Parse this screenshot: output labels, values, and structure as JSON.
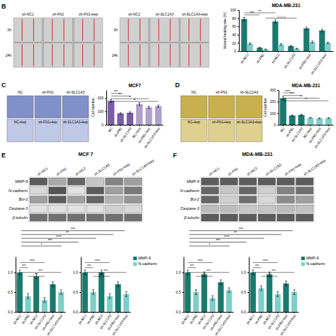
{
  "chart_data": [
    {
      "type": "image_grid",
      "annotations": [
        {
          "text": "B"
        }
      ],
      "categories": [
        "sh-NC1",
        "sh-FN1",
        "sh-FN1+kep"
      ],
      "y_categories": [
        "0h",
        "24h"
      ],
      "color": "#cc0000"
    },
    {
      "type": "image_grid",
      "categories": [
        "sh-NC2",
        "sh-SLC1A3",
        "sh-SLC1A3+kep"
      ],
      "y_categories": [
        "0h",
        "24h"
      ],
      "color": "#cc0000"
    },
    {
      "type": "bar",
      "title": "MDA-MB-231",
      "y_label": "Wound healing rate (%)",
      "categories": [
        "sh-NC1",
        "sh-FN1",
        "sh-NC2",
        "sh-SLC1A3",
        "sh-FN1+kep",
        "sh-SLC1A3+kep"
      ],
      "series": [
        {
          "color": "#1a7a6e",
          "values": [
            78,
            8,
            72,
            12,
            55,
            50
          ],
          "errors": [
            4,
            1,
            4,
            1.5,
            3,
            3
          ]
        },
        {
          "color": "#7ececa",
          "values": [
            18,
            4,
            16,
            6,
            22,
            20
          ],
          "errors": [
            2,
            0.8,
            2,
            1,
            2.5,
            2
          ]
        }
      ],
      "ylim": [
        0,
        100
      ],
      "yticks": [
        0,
        20,
        40,
        60,
        80,
        100
      ],
      "annotations": [
        {
          "text": "***",
          "y": 88,
          "from": 0,
          "to": 1,
          "series": 0
        },
        {
          "text": "**",
          "y": 93,
          "from": 0,
          "to": 2,
          "series": 0
        },
        {
          "text": "△△△",
          "y": 80,
          "from": 1,
          "to": 3,
          "series": 1
        }
      ]
    },
    {
      "type": "image_grid",
      "annotations": [
        {
          "text": "C"
        }
      ],
      "categories": [
        "NC",
        "sh-FN1",
        "sh-SLC1A3"
      ],
      "lower_categories": [
        "NC+kep",
        "sh-FN1+kep",
        "sh-SLC1A3+kep"
      ],
      "colors": [
        "#8090c8",
        "#c0c8e8"
      ]
    },
    {
      "type": "bar",
      "title": "MCF7",
      "y_label": "Cell number",
      "categories": [
        "NC",
        "sh-FN1",
        "sh-SLC1A3",
        "NC+kep",
        "sh-FN1+kep",
        "sh-SLC1A3+kep"
      ],
      "values": [
        180,
        85,
        90,
        155,
        130,
        140
      ],
      "errors": [
        12,
        6,
        7,
        10,
        9,
        8
      ],
      "colors": [
        "#7b5ea7",
        "#7b5ea7",
        "#7b5ea7",
        "#b0a0cc",
        "#b0a0cc",
        "#b0a0cc"
      ],
      "ylim": [
        0,
        260
      ],
      "yticks": [
        0,
        100,
        200
      ],
      "annotations": [
        {
          "text": "***",
          "y": 235,
          "from": 0,
          "to": 1
        },
        {
          "text": "***",
          "y": 215,
          "from": 0,
          "to": 2
        },
        {
          "text": "**",
          "y": 195,
          "from": 0,
          "to": 4
        },
        {
          "text": "**",
          "y": 175,
          "from": 0,
          "to": 5
        }
      ]
    },
    {
      "type": "image_grid",
      "annotations": [
        {
          "text": "D"
        }
      ],
      "categories": [
        "NC",
        "sh-FN1",
        "sh-SLC1A3"
      ],
      "lower_categories": [
        "NC+kep",
        "sh-FN1+kep",
        "sh-SLC1A3+kep"
      ],
      "colors": [
        "#c8b050",
        "#dfd090"
      ]
    },
    {
      "type": "bar",
      "title": "MDA-MB-231",
      "y_label": "Cell number",
      "categories": [
        "NC",
        "sh-FN1",
        "sh-SLC1A3",
        "NC+kep",
        "sh-FN1+kep",
        "sh-SLC1A3+kep"
      ],
      "values": [
        230,
        80,
        85,
        60,
        55,
        58
      ],
      "errors": [
        15,
        5,
        6,
        4,
        4,
        4
      ],
      "colors": [
        "#1a7a6e",
        "#1a7a6e",
        "#1a7a6e",
        "#7ececa",
        "#7ececa",
        "#7ececa"
      ],
      "ylim": [
        0,
        300
      ],
      "yticks": [
        0,
        100,
        200,
        300
      ],
      "annotations": [
        {
          "text": "****",
          "y": 275,
          "from": 0,
          "to": 1
        },
        {
          "text": "****",
          "y": 253,
          "from": 0,
          "to": 2
        },
        {
          "text": "**",
          "y": 230,
          "from": 0,
          "to": 4
        },
        {
          "text": "**",
          "y": 207,
          "from": 0,
          "to": 5
        }
      ]
    },
    {
      "type": "heatmap",
      "title": "MCF 7",
      "annotations": [
        {
          "text": "E"
        }
      ],
      "categories": [
        "sh-NC1",
        "sh-FN1",
        "sh-NC2",
        "sh-SLC1A3",
        "sh-FN1+kep",
        "sh-SLC1A3+kep"
      ],
      "y_categories": [
        "MMP-9",
        "N-cadherin",
        "Bcl-2",
        "Caspase-3",
        "β-tubulin"
      ],
      "values": [
        [
          0.85,
          0.45,
          0.8,
          0.3,
          0.65,
          0.5
        ],
        [
          0.2,
          0.9,
          0.15,
          0.85,
          0.5,
          0.7
        ],
        [
          0.5,
          0.85,
          0.5,
          0.8,
          0.4,
          0.55
        ],
        [
          0.15,
          0.15,
          0.15,
          0.15,
          0.25,
          0.2
        ],
        [
          0.75,
          0.75,
          0.75,
          0.75,
          0.75,
          0.75
        ]
      ]
    },
    {
      "type": "heatmap",
      "title": "MDA-MB-231",
      "annotations": [
        {
          "text": "F"
        }
      ],
      "categories": [
        "sh-NC1",
        "sh-FN1",
        "sh-NC2",
        "sh-SLC1A3",
        "sh-FN1+kep",
        "sh-SLC1A3+kep"
      ],
      "y_categories": [
        "MMP-9",
        "N-cadherin",
        "Bcl-2",
        "Caspase-3",
        "β-tubulin"
      ],
      "values": [
        [
          0.85,
          0.85,
          0.85,
          0.85,
          0.85,
          0.85
        ],
        [
          0.8,
          0.3,
          0.8,
          0.25,
          0.65,
          0.75
        ],
        [
          0.8,
          0.25,
          0.75,
          0.2,
          0.6,
          0.5
        ],
        [
          0.35,
          0.35,
          0.3,
          0.3,
          0.35,
          0.32
        ],
        [
          0.85,
          0.85,
          0.85,
          0.85,
          0.85,
          0.85
        ]
      ]
    },
    {
      "type": "brackets",
      "annotations": [
        {
          "text": "***"
        },
        {
          "text": "**"
        },
        {
          "text": "****"
        },
        {
          "text": "***"
        },
        {
          "text": "*"
        }
      ]
    },
    {
      "type": "bar",
      "categories": [
        "sh-NC1",
        "sh-FN1",
        "sh-NC2",
        "sh-SLC1A3",
        "sh-FN1+kep",
        "sh-SLC1A3+kep"
      ],
      "values": [
        1.0,
        0.4,
        0.9,
        0.3,
        0.7,
        0.5
      ],
      "errors": [
        0.06,
        0.06,
        0.06,
        0.06,
        0.06,
        0.06
      ],
      "colors": [
        "#1a7a6e",
        "#7ececa",
        "#1a7a6e",
        "#7ececa",
        "#1a7a6e",
        "#7ececa"
      ],
      "ylim": [
        0,
        1.4
      ],
      "yticks": [
        {
          "value": 0,
          "label": "0.0"
        },
        0.5,
        {
          "value": 1,
          "label": "1.0"
        }
      ],
      "annotations": [
        {
          "text": "****",
          "y": 1.25,
          "from": 0,
          "to": 3
        },
        {
          "text": "***",
          "y": 1.12,
          "from": 0,
          "to": 1
        },
        {
          "text": "***",
          "y": 1.0,
          "from": 0,
          "to": 5
        },
        {
          "text": "**",
          "y": 0.9,
          "from": 1,
          "to": 3
        }
      ]
    },
    {
      "type": "bar",
      "categories": [
        "sh-NC1",
        "sh-FN1",
        "sh-NC2",
        "sh-SLC1A3",
        "sh-FN1+kep",
        "sh-SLC1A3+kep"
      ],
      "values": [
        1.0,
        0.5,
        1.0,
        0.4,
        0.7,
        0.45
      ],
      "errors": [
        0.06,
        0.06,
        0.06,
        0.06,
        0.06,
        0.06
      ],
      "colors": [
        "#1a7a6e",
        "#7ececa",
        "#1a7a6e",
        "#7ececa",
        "#1a7a6e",
        "#7ececa"
      ],
      "ylim": [
        0,
        1.4
      ],
      "yticks": [
        {
          "value": 0,
          "label": "0.0"
        },
        0.5,
        {
          "value": 1,
          "label": "1.0"
        }
      ],
      "annotations": [
        {
          "text": "****",
          "y": 1.25,
          "from": 0,
          "to": 3
        },
        {
          "text": "***",
          "y": 1.12,
          "from": 0,
          "to": 1
        },
        {
          "text": "***",
          "y": 1.0,
          "from": 0,
          "to": 5
        },
        {
          "text": "**",
          "y": 0.9,
          "from": 1,
          "to": 3
        }
      ],
      "legend": "right",
      "legend_items": [
        {
          "name": "MMP-9",
          "color": "#1a7a6e"
        },
        {
          "name": "N-cadherin",
          "color": "#7ececa"
        }
      ]
    },
    {
      "type": "brackets",
      "annotations": [
        {
          "text": "***"
        },
        {
          "text": "**"
        },
        {
          "text": "****"
        },
        {
          "text": "***"
        },
        {
          "text": "*"
        }
      ]
    },
    {
      "type": "bar",
      "categories": [
        "sh-NC1",
        "sh-FN1",
        "sh-NC2",
        "sh-SLC1A3",
        "sh-FN1+kep",
        "sh-SLC1A3+kep"
      ],
      "values": [
        1.0,
        0.5,
        0.95,
        0.35,
        0.75,
        0.55
      ],
      "errors": [
        0.06,
        0.06,
        0.06,
        0.06,
        0.06,
        0.06
      ],
      "colors": [
        "#1a7a6e",
        "#7ececa",
        "#1a7a6e",
        "#7ececa",
        "#1a7a6e",
        "#7ececa"
      ],
      "ylim": [
        0,
        1.4
      ],
      "yticks": [
        {
          "value": 0,
          "label": "0.0"
        },
        0.5,
        {
          "value": 1,
          "label": "1.0"
        }
      ],
      "annotations": [
        {
          "text": "****",
          "y": 1.25,
          "from": 0,
          "to": 3
        },
        {
          "text": "***",
          "y": 1.12,
          "from": 0,
          "to": 1
        },
        {
          "text": "***",
          "y": 1.0,
          "from": 0,
          "to": 5
        },
        {
          "text": "**",
          "y": 0.9,
          "from": 1,
          "to": 3
        }
      ]
    },
    {
      "type": "bar",
      "categories": [
        "sh-NC1",
        "sh-FN1",
        "sh-NC2",
        "sh-SLC1A3",
        "sh-FN1+kep",
        "sh-SLC1A3+kep"
      ],
      "values": [
        1.0,
        0.6,
        0.95,
        0.45,
        0.72,
        0.5
      ],
      "errors": [
        0.06,
        0.06,
        0.06,
        0.06,
        0.06,
        0.06
      ],
      "colors": [
        "#1a7a6e",
        "#7ececa",
        "#1a7a6e",
        "#7ececa",
        "#1a7a6e",
        "#7ececa"
      ],
      "ylim": [
        0,
        1.4
      ],
      "yticks": [
        {
          "value": 0,
          "label": "0.0"
        },
        0.5,
        {
          "value": 1,
          "label": "1.0"
        }
      ],
      "annotations": [
        {
          "text": "****",
          "y": 1.25,
          "from": 0,
          "to": 3
        },
        {
          "text": "***",
          "y": 1.12,
          "from": 0,
          "to": 1
        },
        {
          "text": "***",
          "y": 1.0,
          "from": 0,
          "to": 5
        },
        {
          "text": "**",
          "y": 0.9,
          "from": 1,
          "to": 3
        }
      ],
      "legend": "right",
      "legend_items": [
        {
          "name": "MMP-9",
          "color": "#1a7a6e"
        },
        {
          "name": "N-cadherin",
          "color": "#7ececa"
        }
      ]
    }
  ]
}
